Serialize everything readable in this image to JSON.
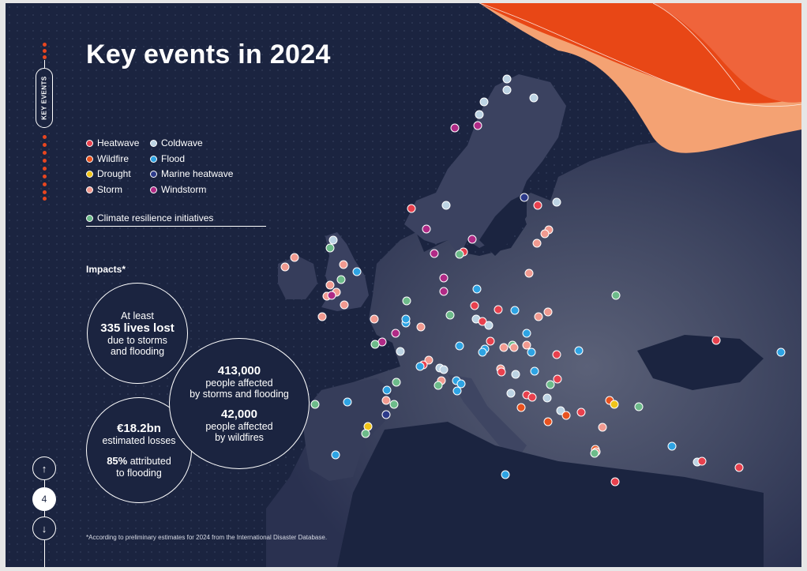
{
  "title": "Key events in 2024",
  "rail_label": "KEY EVENTS",
  "page_number": "4",
  "nav": {
    "up_icon": "↑",
    "down_icon": "↓"
  },
  "legend": [
    {
      "label": "Heatwave",
      "color": "#e8414e"
    },
    {
      "label": "Wildfire",
      "color": "#e8521f"
    },
    {
      "label": "Drought",
      "color": "#f0c419"
    },
    {
      "label": "Storm",
      "color": "#f19a90"
    },
    {
      "label": "Coldwave",
      "color": "#bcd3e3"
    },
    {
      "label": "Flood",
      "color": "#2ea3e3"
    },
    {
      "label": "Marine heatwave",
      "color": "#2c3a8a"
    },
    {
      "label": "Windstorm",
      "color": "#b02a86"
    }
  ],
  "resilience_legend": {
    "label": "Climate resilience initiatives",
    "color": "#6dbb8a"
  },
  "impacts_label": "Impacts*",
  "impacts": {
    "lives": {
      "line1": "At least",
      "value": "335 lives lost",
      "line2": "due to storms",
      "line3": "and flooding"
    },
    "affected": {
      "value1": "413,000",
      "text1a": "people affected",
      "text1b": "by storms and flooding",
      "value2": "42,000",
      "text2a": "people affected",
      "text2b": "by wildfires"
    },
    "losses": {
      "value1": "€18.2bn",
      "text1": "estimated losses",
      "value2": "85%",
      "text2a": " attributed",
      "text2b": "to flooding"
    }
  },
  "footnote": "*According to preliminary estimates for 2024 from the International Disaster Database."
}
